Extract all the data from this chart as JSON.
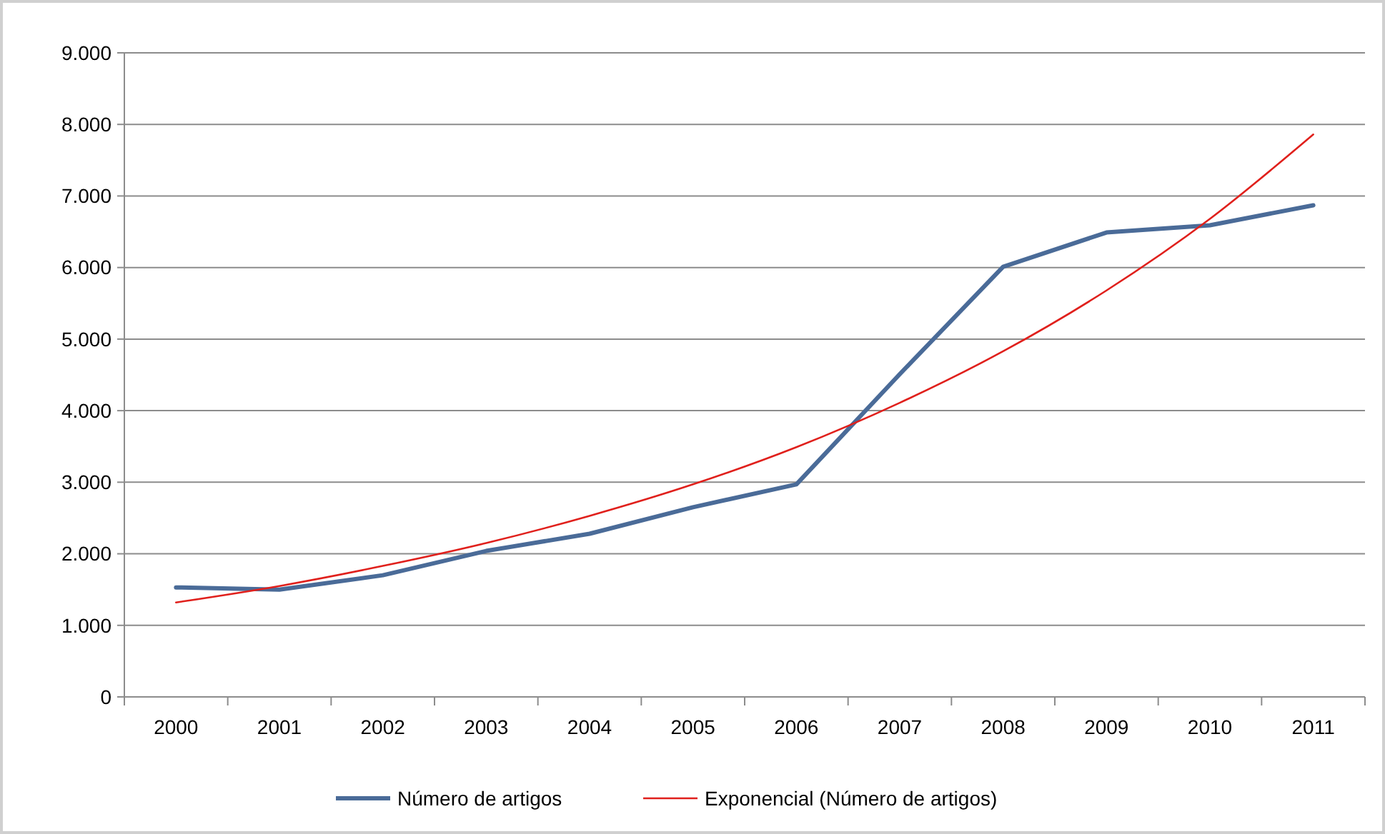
{
  "chart_data": {
    "type": "line",
    "categories": [
      "2000",
      "2001",
      "2002",
      "2003",
      "2004",
      "2005",
      "2006",
      "2007",
      "2008",
      "2009",
      "2010",
      "2011"
    ],
    "series": [
      {
        "name": "Número de artigos",
        "color": "#4a6b98",
        "values": [
          1530,
          1500,
          1700,
          2040,
          2280,
          2650,
          2970,
          4510,
          6010,
          6490,
          6590,
          6870
        ]
      },
      {
        "name": "Exponencial (Número de artigos)",
        "color": "#e0201c",
        "values": [
          1320,
          1550,
          1830,
          2150,
          2530,
          2970,
          3490,
          4110,
          4830,
          5680,
          6680,
          7860
        ]
      }
    ],
    "ylim": [
      0,
      9000
    ],
    "yticks": [
      0,
      {
        "value": 1000,
        "label": "1.000"
      },
      {
        "value": 2000,
        "label": "2.000"
      },
      {
        "value": 3000,
        "label": "3.000"
      },
      {
        "value": 4000,
        "label": "4.000"
      },
      {
        "value": 5000,
        "label": "5.000"
      },
      {
        "value": 6000,
        "label": "6.000"
      },
      {
        "value": 7000,
        "label": "7.000"
      },
      {
        "value": 8000,
        "label": "8.000"
      },
      {
        "value": 9000,
        "label": "9.000"
      }
    ],
    "grid": "y",
    "legend": "bottom",
    "marker": "none"
  }
}
